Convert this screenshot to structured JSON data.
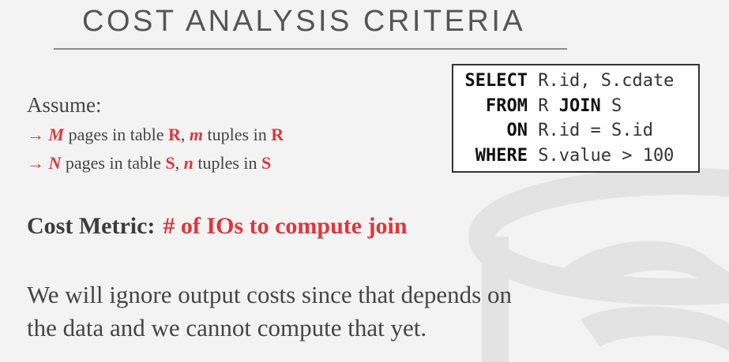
{
  "slide": {
    "title": "COST ANALYSIS CRITERIA",
    "assume_label": "Assume:",
    "bullets": [
      {
        "arrow": "→",
        "var1": "M",
        "text1": " pages in table ",
        "table1": "R",
        "sep": ", ",
        "var2": "m",
        "text2": " tuples in ",
        "table2": "R"
      },
      {
        "arrow": "→",
        "var1": "N",
        "text1": " pages in table ",
        "table1": "S",
        "sep": ", ",
        "var2": "n",
        "text2": " tuples in ",
        "table2": "S"
      }
    ],
    "metric_label": "Cost Metric:",
    "metric_value": "# of IOs to compute join",
    "paragraph_line1": "We will ignore output costs since that depends on",
    "paragraph_line2": "the data and we cannot compute that yet."
  },
  "sql": {
    "lines": [
      {
        "keyword": "SELECT",
        "rest": " R.id, S.cdate"
      },
      {
        "keyword": "FROM",
        "rest": " R ",
        "keyword2": "JOIN",
        "rest2": " S"
      },
      {
        "keyword": "ON",
        "rest": " R.id = S.id"
      },
      {
        "keyword": "WHERE",
        "rest": " S.value > 100"
      }
    ]
  },
  "colors": {
    "accent": "#e0353b",
    "text": "#454545",
    "background": "#f3f3f3",
    "watermark": "#e4e4e4"
  },
  "icons": {
    "background_logo": "database-cylinder-watermark-icon"
  }
}
